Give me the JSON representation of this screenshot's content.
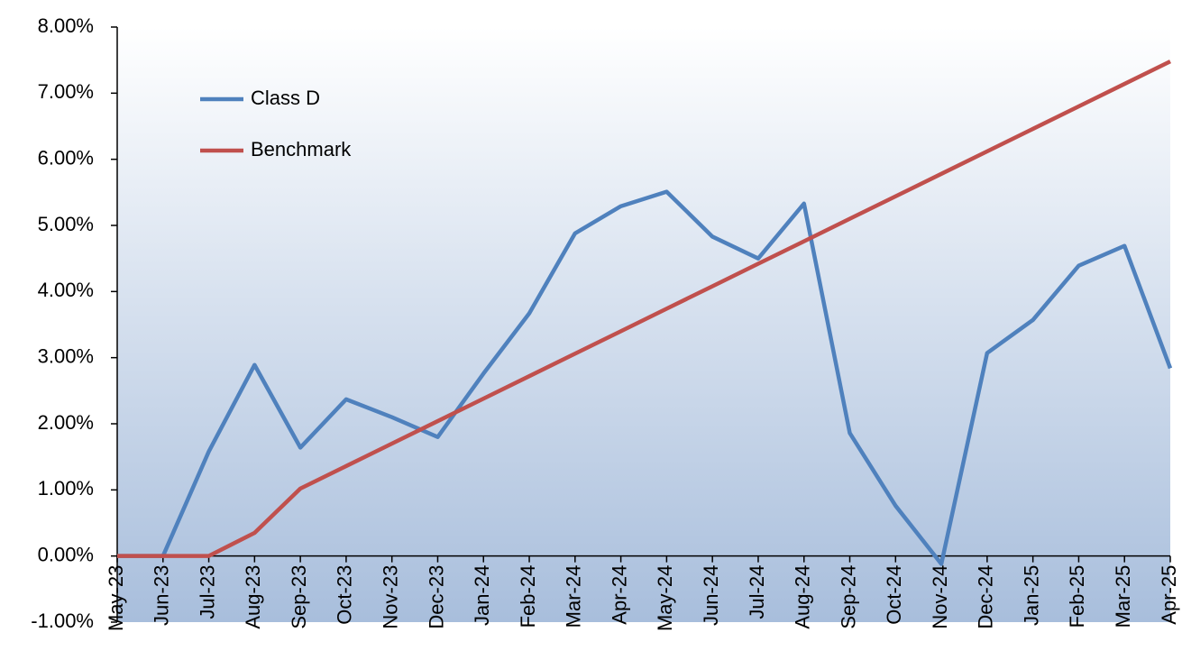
{
  "chart_data": {
    "type": "line",
    "categories": [
      "May-23",
      "Jun-23",
      "Jul-23",
      "Aug-23",
      "Sep-23",
      "Oct-23",
      "Nov-23",
      "Dec-23",
      "Jan-24",
      "Feb-24",
      "Mar-24",
      "Apr-24",
      "May-24",
      "Jun-24",
      "Jul-24",
      "Aug-24",
      "Sep-24",
      "Oct-24",
      "Nov-24",
      "Dec-24",
      "Jan-25",
      "Feb-25",
      "Mar-25",
      "Apr-25"
    ],
    "series": [
      {
        "name": "Class D",
        "color": "#4f81bd",
        "values": [
          0,
          0,
          1.58,
          2.89,
          1.64,
          2.37,
          2.1,
          1.8,
          2.76,
          3.67,
          4.88,
          5.29,
          5.51,
          4.83,
          4.5,
          5.33,
          1.86,
          0.76,
          -0.12,
          3.07,
          3.57,
          4.39,
          4.69,
          2.84
        ]
      },
      {
        "name": "Benchmark",
        "color": "#c0504d",
        "values": [
          0,
          0,
          0,
          0.35,
          1.02,
          1.36,
          1.7,
          2.04,
          2.38,
          2.72,
          3.06,
          3.4,
          3.74,
          4.08,
          4.42,
          4.76,
          5.1,
          5.44,
          5.78,
          6.12,
          6.46,
          6.8,
          7.14,
          7.48
        ]
      }
    ],
    "ylim": [
      -1,
      8
    ],
    "yticks": [
      {
        "value": -1,
        "label": "-1.00%"
      },
      {
        "value": 0,
        "label": "0.00%"
      },
      {
        "value": 1,
        "label": "1.00%"
      },
      {
        "value": 2,
        "label": "2.00%"
      },
      {
        "value": 3,
        "label": "3.00%"
      },
      {
        "value": 4,
        "label": "4.00%"
      },
      {
        "value": 5,
        "label": "5.00%"
      },
      {
        "value": 6,
        "label": "6.00%"
      },
      {
        "value": 7,
        "label": "7.00%"
      },
      {
        "value": 8,
        "label": "8.00%"
      }
    ],
    "legend": "upper left"
  }
}
